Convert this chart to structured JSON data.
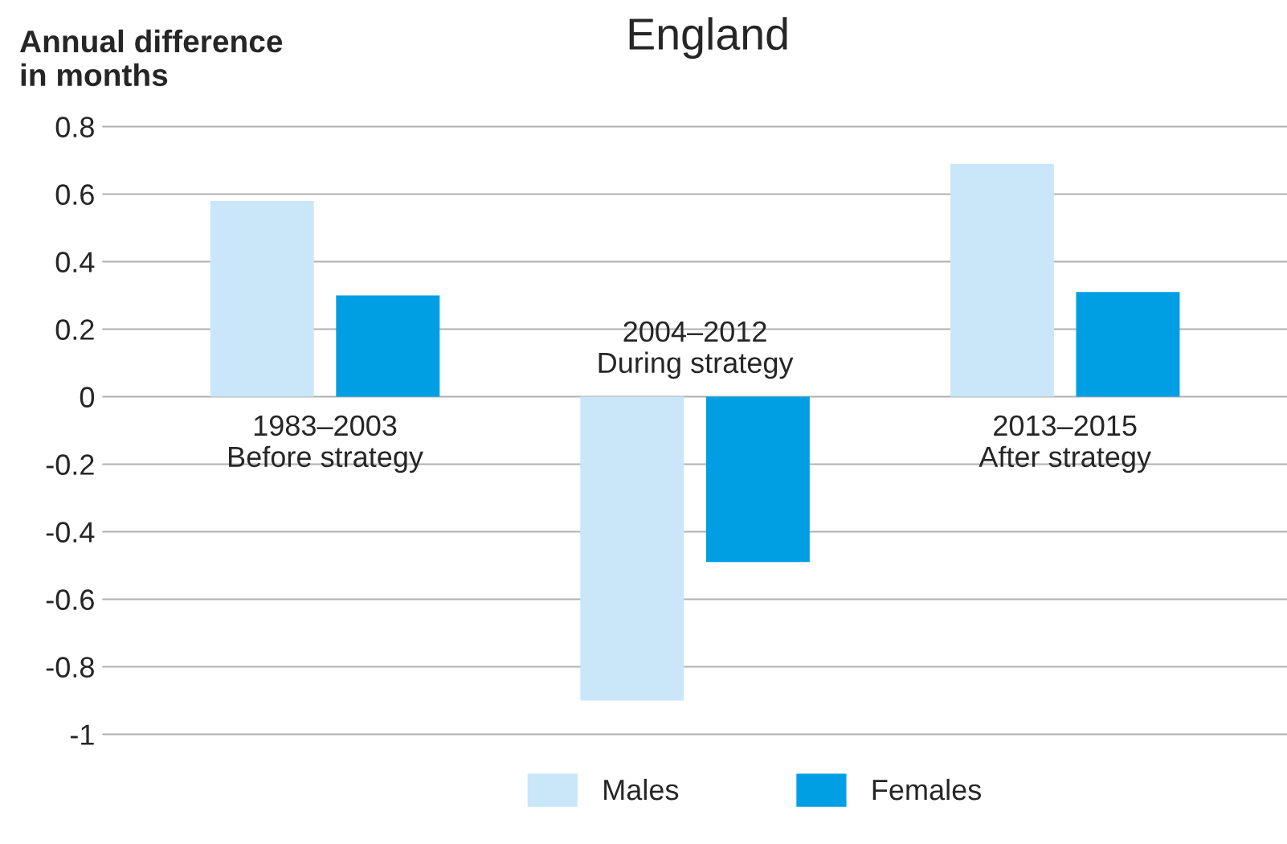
{
  "chart_data": {
    "type": "bar",
    "title": "England",
    "ylabel": "Annual difference\nin months",
    "categories": [
      "1983–2003\nBefore strategy",
      "2004–2012\nDuring strategy",
      "2013–2015\nAfter strategy"
    ],
    "series": [
      {
        "name": "Males",
        "color": "#c9e7f8",
        "values": [
          0.58,
          -0.9,
          0.69
        ]
      },
      {
        "name": "Females",
        "color": "#009fe3",
        "values": [
          0.3,
          -0.49,
          0.31
        ]
      }
    ],
    "ylim": [
      -1,
      0.8
    ],
    "yticks": [
      0.8,
      0.6,
      0.4,
      0.2,
      0,
      -0.2,
      -0.4,
      -0.6,
      -0.8,
      -1
    ],
    "grid": "y",
    "legend": "bottom"
  }
}
